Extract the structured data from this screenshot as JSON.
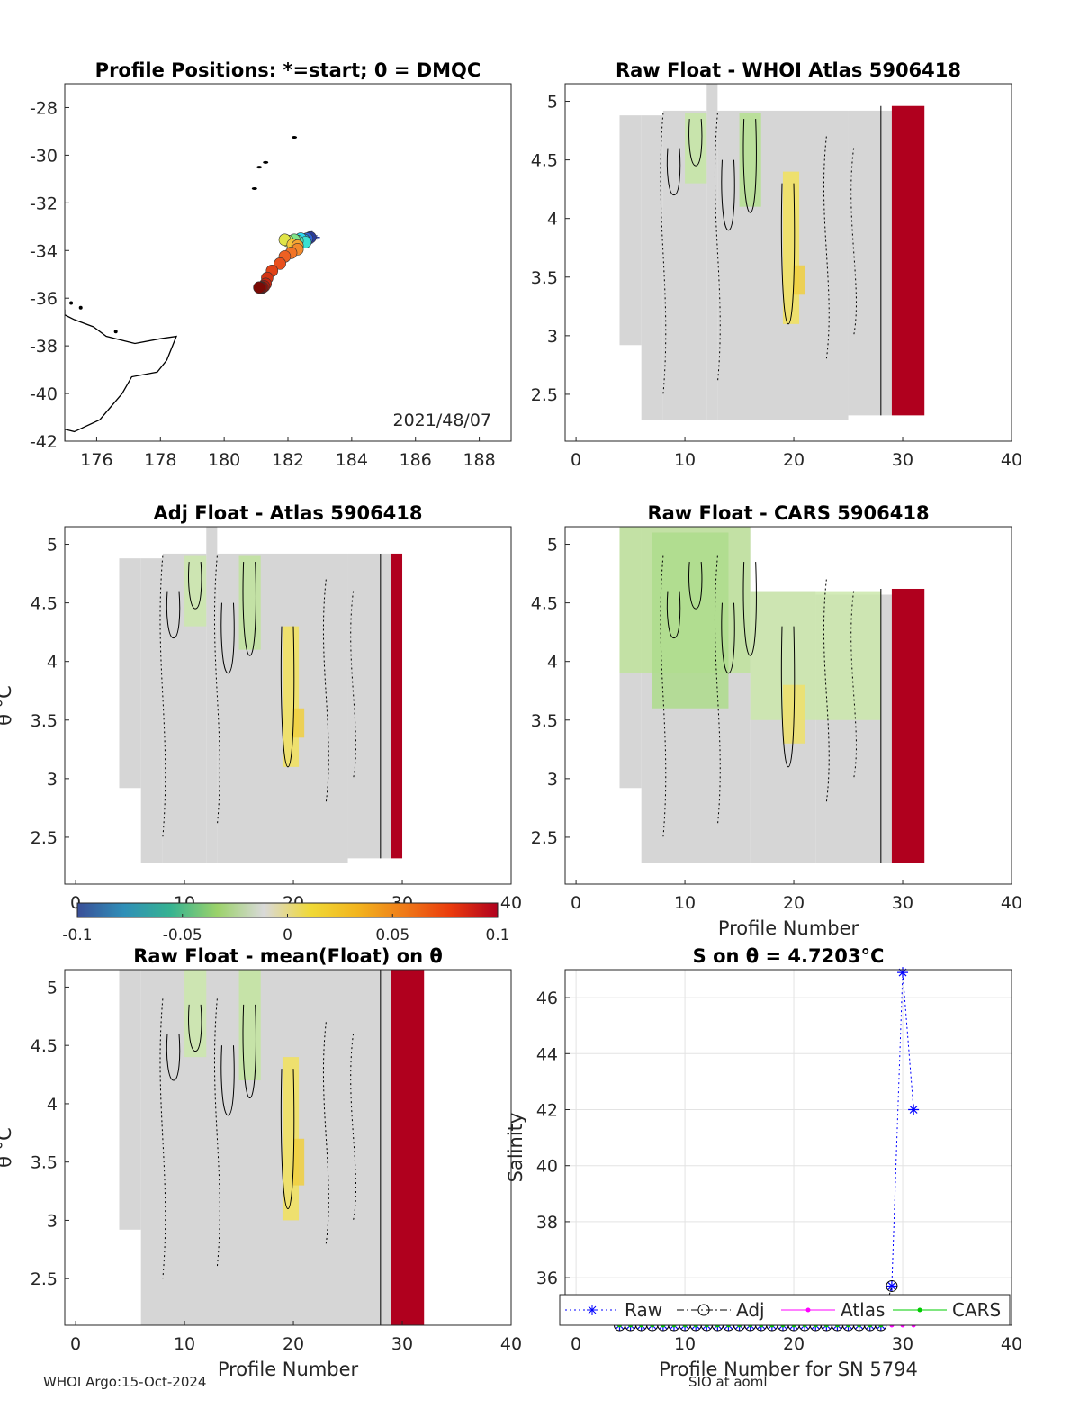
{
  "footer": {
    "left": "WHOI Argo:15-Oct-2024",
    "right": "SIO at aoml"
  },
  "colorbar": {
    "ticks": [
      "-0.1",
      "-0.05",
      "0",
      "0.05",
      "0.1"
    ],
    "range": [
      -0.1,
      0.1
    ],
    "colors": [
      "#3a4f98",
      "#2f8fb8",
      "#36b391",
      "#9bd26a",
      "#d9d9d9",
      "#f0d936",
      "#f2b41e",
      "#ef7a18",
      "#ea3a0c",
      "#b0001e"
    ]
  },
  "chart_data": [
    {
      "id": "positions",
      "type": "scatter",
      "title": "Profile Positions: *=start; 0 = DMQC",
      "xlim": [
        175,
        189
      ],
      "ylim": [
        -42,
        -27
      ],
      "xticks": [
        "176",
        "178",
        "180",
        "182",
        "184",
        "186",
        "188"
      ],
      "yticks": [
        "-28",
        "-30",
        "-32",
        "-34",
        "-36",
        "-38",
        "-40",
        "-42"
      ],
      "date_label": "2021/48/07",
      "points": [
        {
          "lon": 182.7,
          "lat": -33.45,
          "c": "#2a3a9a"
        },
        {
          "lon": 182.6,
          "lat": -33.5,
          "c": "#2f62d6"
        },
        {
          "lon": 182.5,
          "lat": -33.55,
          "c": "#23a9e6"
        },
        {
          "lon": 182.4,
          "lat": -33.5,
          "c": "#2cd9ef"
        },
        {
          "lon": 182.55,
          "lat": -33.65,
          "c": "#3ae0d2"
        },
        {
          "lon": 182.3,
          "lat": -33.6,
          "c": "#54e3b0"
        },
        {
          "lon": 182.2,
          "lat": -33.55,
          "c": "#7fe58a"
        },
        {
          "lon": 182.0,
          "lat": -33.6,
          "c": "#b3e85f"
        },
        {
          "lon": 181.9,
          "lat": -33.55,
          "c": "#e0e447"
        },
        {
          "lon": 182.15,
          "lat": -33.75,
          "c": "#f5c63a"
        },
        {
          "lon": 182.3,
          "lat": -33.8,
          "c": "#f5a531"
        },
        {
          "lon": 182.3,
          "lat": -33.95,
          "c": "#f38a2b"
        },
        {
          "lon": 182.1,
          "lat": -34.1,
          "c": "#f27426"
        },
        {
          "lon": 181.9,
          "lat": -34.25,
          "c": "#ee6022"
        },
        {
          "lon": 181.75,
          "lat": -34.55,
          "c": "#e9501d"
        },
        {
          "lon": 181.5,
          "lat": -34.85,
          "c": "#e04218"
        },
        {
          "lon": 181.35,
          "lat": -35.15,
          "c": "#d23414"
        },
        {
          "lon": 181.3,
          "lat": -35.4,
          "c": "#c42610"
        },
        {
          "lon": 181.25,
          "lat": -35.5,
          "c": "#b11c0c"
        },
        {
          "lon": 181.2,
          "lat": -35.55,
          "c": "#9d1409"
        },
        {
          "lon": 181.15,
          "lat": -35.55,
          "c": "#8a0e07"
        },
        {
          "lon": 181.1,
          "lat": -35.55,
          "c": "#7a0a05"
        }
      ]
    },
    {
      "id": "raw-whoi",
      "type": "heatmap",
      "title": "Raw Float - WHOI Atlas  5906418",
      "xlim": [
        -1,
        40
      ],
      "ylim": [
        2.1,
        5.15
      ],
      "xticks": [
        "0",
        "10",
        "20",
        "30",
        "40"
      ],
      "yticks": [
        "5",
        "4.5",
        "4",
        "3.5",
        "3",
        "2.5"
      ],
      "xlabel": "",
      "ylabel": "",
      "columns": [
        {
          "x0": 4,
          "x1": 6,
          "top": 4.88,
          "bottom": 2.92
        },
        {
          "x0": 6,
          "x1": 8,
          "top": 4.88,
          "bottom": 2.28
        },
        {
          "x0": 8,
          "x1": 12,
          "top": 4.92,
          "bottom": 2.28
        },
        {
          "x0": 12,
          "x1": 13,
          "top": 5.15,
          "bottom": 2.28
        },
        {
          "x0": 13,
          "x1": 25,
          "top": 4.92,
          "bottom": 2.28
        },
        {
          "x0": 25,
          "x1": 28,
          "top": 4.92,
          "bottom": 2.32
        },
        {
          "x0": 28,
          "x1": 29,
          "top": 4.92,
          "bottom": 2.32
        }
      ],
      "hot_column": {
        "x0": 29,
        "x1": 32,
        "top": 4.96,
        "bottom": 2.32,
        "value": 0.1
      },
      "tint_bands": [
        {
          "x0": 10,
          "x1": 12,
          "top": 4.9,
          "bottom": 4.3,
          "c": "#c6e6a4"
        },
        {
          "x0": 15,
          "x1": 17,
          "top": 4.9,
          "bottom": 4.1,
          "c": "#b5e090"
        },
        {
          "x0": 19,
          "x1": 20.5,
          "top": 4.4,
          "bottom": 3.1,
          "c": "#f2e25c"
        },
        {
          "x0": 20,
          "x1": 21,
          "top": 3.6,
          "bottom": 3.35,
          "c": "#f0cf40"
        }
      ]
    },
    {
      "id": "adj-atlas",
      "type": "heatmap",
      "title": "Adj Float - Atlas  5906418",
      "xlim": [
        -1,
        40
      ],
      "ylim": [
        2.1,
        5.15
      ],
      "xticks": [
        "0",
        "10",
        "20",
        "30",
        "40"
      ],
      "yticks": [
        "5",
        "4.5",
        "4",
        "3.5",
        "3",
        "2.5"
      ],
      "xlabel": "",
      "ylabel": "θ °C",
      "columns": [
        {
          "x0": 4,
          "x1": 6,
          "top": 4.88,
          "bottom": 2.92
        },
        {
          "x0": 6,
          "x1": 8,
          "top": 4.88,
          "bottom": 2.28
        },
        {
          "x0": 8,
          "x1": 12,
          "top": 4.92,
          "bottom": 2.28
        },
        {
          "x0": 12,
          "x1": 13,
          "top": 5.15,
          "bottom": 2.28
        },
        {
          "x0": 13,
          "x1": 25,
          "top": 4.92,
          "bottom": 2.28
        },
        {
          "x0": 25,
          "x1": 28,
          "top": 4.92,
          "bottom": 2.32
        },
        {
          "x0": 28,
          "x1": 29,
          "top": 4.92,
          "bottom": 2.32
        }
      ],
      "hot_column": {
        "x0": 29,
        "x1": 30,
        "top": 4.92,
        "bottom": 2.32,
        "value": 0.1
      },
      "tint_bands": [
        {
          "x0": 10,
          "x1": 12,
          "top": 4.9,
          "bottom": 4.3,
          "c": "#cbe8ab"
        },
        {
          "x0": 15,
          "x1": 17,
          "top": 4.9,
          "bottom": 4.1,
          "c": "#bfe39c"
        },
        {
          "x0": 19,
          "x1": 20.5,
          "top": 4.3,
          "bottom": 3.1,
          "c": "#f2e25c"
        },
        {
          "x0": 20,
          "x1": 21,
          "top": 3.6,
          "bottom": 3.35,
          "c": "#f0cf40"
        }
      ]
    },
    {
      "id": "raw-cars",
      "type": "heatmap",
      "title": "Raw Float - CARS  5906418",
      "xlim": [
        -1,
        40
      ],
      "ylim": [
        2.1,
        5.15
      ],
      "xticks": [
        "0",
        "10",
        "20",
        "30",
        "40"
      ],
      "yticks": [
        "5",
        "4.5",
        "4",
        "3.5",
        "3",
        "2.5"
      ],
      "xlabel": "Profile Number",
      "ylabel": "",
      "columns": [
        {
          "x0": 4,
          "x1": 6,
          "top": 5.15,
          "bottom": 2.92
        },
        {
          "x0": 6,
          "x1": 16,
          "top": 5.15,
          "bottom": 2.28
        },
        {
          "x0": 16,
          "x1": 22,
          "top": 4.6,
          "bottom": 2.28
        },
        {
          "x0": 22,
          "x1": 28,
          "top": 4.57,
          "bottom": 2.28
        },
        {
          "x0": 28,
          "x1": 29,
          "top": 4.57,
          "bottom": 2.28
        }
      ],
      "hot_column": {
        "x0": 29,
        "x1": 32,
        "top": 4.62,
        "bottom": 2.28,
        "value": 0.1
      },
      "tint_bands": [
        {
          "x0": 4,
          "x1": 16,
          "top": 5.15,
          "bottom": 3.9,
          "c": "#bfe39c"
        },
        {
          "x0": 7,
          "x1": 14,
          "top": 5.1,
          "bottom": 3.6,
          "c": "#aedc8c"
        },
        {
          "x0": 16,
          "x1": 28,
          "top": 4.6,
          "bottom": 3.5,
          "c": "#cbe8ab"
        },
        {
          "x0": 19,
          "x1": 21,
          "top": 3.8,
          "bottom": 3.3,
          "c": "#efe06a"
        }
      ]
    },
    {
      "id": "raw-mean",
      "type": "heatmap",
      "title": "Raw Float - mean(Float) on θ",
      "xlim": [
        -1,
        40
      ],
      "ylim": [
        2.1,
        5.15
      ],
      "xticks": [
        "0",
        "10",
        "20",
        "30",
        "40"
      ],
      "yticks": [
        "5",
        "4.5",
        "4",
        "3.5",
        "3",
        "2.5"
      ],
      "xlabel": "Profile Number",
      "ylabel": "θ °C",
      "columns": [
        {
          "x0": 4,
          "x1": 6,
          "top": 5.15,
          "bottom": 2.92
        },
        {
          "x0": 6,
          "x1": 28,
          "top": 5.15,
          "bottom": 2.1
        },
        {
          "x0": 28,
          "x1": 29,
          "top": 5.15,
          "bottom": 2.1
        }
      ],
      "hot_column": {
        "x0": 29,
        "x1": 32,
        "top": 5.15,
        "bottom": 2.1,
        "value": 0.1
      },
      "tint_bands": [
        {
          "x0": 10,
          "x1": 12,
          "top": 5.15,
          "bottom": 4.4,
          "c": "#cbe8ab"
        },
        {
          "x0": 15,
          "x1": 17,
          "top": 5.15,
          "bottom": 4.2,
          "c": "#c3e5a0"
        },
        {
          "x0": 19,
          "x1": 20.5,
          "top": 4.4,
          "bottom": 3.0,
          "c": "#f2e25c"
        },
        {
          "x0": 20,
          "x1": 21,
          "top": 3.7,
          "bottom": 3.3,
          "c": "#f0cf40"
        }
      ]
    },
    {
      "id": "salinity",
      "type": "line",
      "title": "S on θ = 4.7203°C",
      "xlim": [
        -1,
        40
      ],
      "ylim": [
        34.3,
        47
      ],
      "xticks": [
        "0",
        "10",
        "20",
        "30",
        "40"
      ],
      "yticks": [
        "46",
        "44",
        "42",
        "40",
        "38",
        "36"
      ],
      "xlabel": "Profile Number for SN 5794",
      "ylabel": "Salinity",
      "grid": true,
      "legend_position": "bottom",
      "series": [
        {
          "name": "Raw",
          "color": "#0000ff",
          "marker": "star",
          "x": [
            4,
            5,
            6,
            7,
            8,
            9,
            10,
            11,
            12,
            13,
            14,
            15,
            16,
            17,
            18,
            19,
            20,
            21,
            22,
            23,
            24,
            25,
            26,
            27,
            28,
            29,
            30,
            31
          ],
          "y": [
            34.3,
            34.3,
            34.3,
            34.3,
            34.3,
            34.3,
            34.3,
            34.3,
            34.3,
            34.3,
            34.3,
            34.3,
            34.3,
            34.3,
            34.3,
            34.3,
            34.3,
            34.3,
            34.3,
            34.3,
            34.3,
            34.3,
            34.3,
            34.3,
            34.3,
            35.7,
            46.9,
            42.0
          ]
        },
        {
          "name": "Adj",
          "color": "#000000",
          "marker": "circle",
          "x": [
            4,
            5,
            6,
            7,
            8,
            9,
            10,
            11,
            12,
            13,
            14,
            15,
            16,
            17,
            18,
            19,
            20,
            21,
            22,
            23,
            24,
            25,
            26,
            27,
            28,
            29
          ],
          "y": [
            34.3,
            34.3,
            34.3,
            34.3,
            34.3,
            34.3,
            34.3,
            34.3,
            34.3,
            34.3,
            34.3,
            34.3,
            34.3,
            34.3,
            34.3,
            34.3,
            34.3,
            34.3,
            34.3,
            34.3,
            34.3,
            34.3,
            34.3,
            34.3,
            34.3,
            35.7
          ]
        },
        {
          "name": "Atlas",
          "color": "#ff00ff",
          "marker": "dot",
          "x": [
            4,
            5,
            6,
            7,
            8,
            9,
            10,
            11,
            12,
            13,
            14,
            15,
            16,
            17,
            18,
            19,
            20,
            21,
            22,
            23,
            24,
            25,
            26,
            27,
            28,
            29,
            30,
            31
          ],
          "y": [
            34.3,
            34.3,
            34.3,
            34.3,
            34.3,
            34.3,
            34.3,
            34.3,
            34.3,
            34.3,
            34.3,
            34.3,
            34.3,
            34.3,
            34.3,
            34.3,
            34.3,
            34.3,
            34.3,
            34.3,
            34.3,
            34.3,
            34.3,
            34.3,
            34.3,
            34.3,
            34.3,
            34.3
          ]
        },
        {
          "name": "CARS",
          "color": "#00cc00",
          "marker": "dot",
          "x": [
            4,
            5,
            6,
            7,
            8,
            9,
            10,
            11,
            12,
            13,
            14,
            15,
            16,
            17,
            18,
            19,
            20,
            21,
            22,
            23,
            24,
            25,
            26,
            27,
            28
          ],
          "y": [
            34.3,
            34.3,
            34.3,
            34.3,
            34.3,
            34.3,
            34.3,
            34.3,
            34.3,
            34.3,
            34.3,
            34.3,
            34.3,
            34.3,
            34.3,
            34.3,
            34.3,
            34.3,
            34.3,
            34.3,
            34.3,
            34.3,
            34.3,
            34.3,
            34.3
          ]
        }
      ]
    }
  ]
}
